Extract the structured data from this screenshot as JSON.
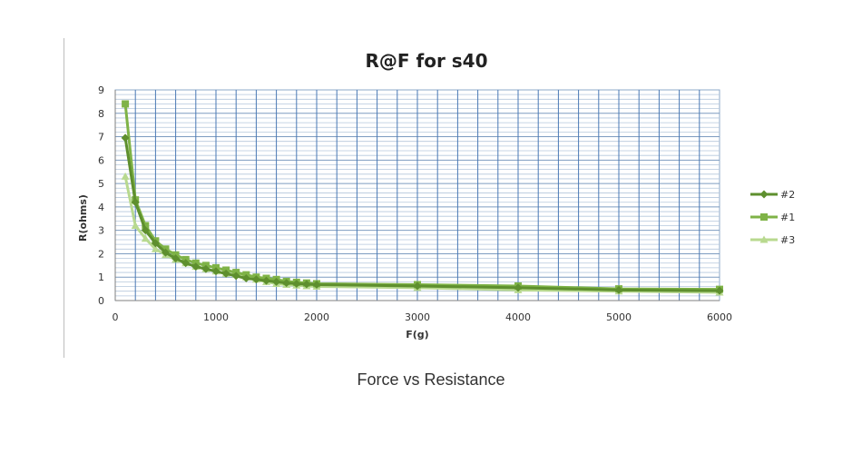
{
  "caption": "Force vs Resistance",
  "chart_data": {
    "type": "line",
    "title": "R@F for s40",
    "xlabel": "F(g)",
    "ylabel": "R(ohms)",
    "xlim": [
      0,
      6000
    ],
    "ylim": [
      0,
      9
    ],
    "x_major_ticks": [
      0,
      1000,
      2000,
      3000,
      4000,
      5000,
      6000
    ],
    "y_major_ticks": [
      0,
      1,
      2,
      3,
      4,
      5,
      6,
      7,
      8,
      9
    ],
    "grid": true,
    "legend_position": "right",
    "series": [
      {
        "name": "#2",
        "marker": "diamond",
        "color": "#5e8f2e",
        "x": [
          100,
          200,
          300,
          400,
          500,
          600,
          700,
          800,
          900,
          1000,
          1100,
          1200,
          1300,
          1400,
          1500,
          1600,
          1700,
          1800,
          1900,
          2000,
          3000,
          4000,
          5000,
          6000
        ],
        "y": [
          6.95,
          4.2,
          3.0,
          2.45,
          2.05,
          1.8,
          1.6,
          1.45,
          1.35,
          1.25,
          1.15,
          1.05,
          0.95,
          0.9,
          0.85,
          0.8,
          0.75,
          0.72,
          0.7,
          0.68,
          0.62,
          0.55,
          0.45,
          0.42
        ]
      },
      {
        "name": "#1",
        "marker": "square",
        "color": "#7fb347",
        "x": [
          100,
          200,
          300,
          400,
          500,
          600,
          700,
          800,
          900,
          1000,
          1100,
          1200,
          1300,
          1400,
          1500,
          1600,
          1700,
          1800,
          1900,
          2000,
          3000,
          4000,
          5000,
          6000
        ],
        "y": [
          8.4,
          4.3,
          3.2,
          2.55,
          2.2,
          1.95,
          1.75,
          1.6,
          1.5,
          1.4,
          1.3,
          1.2,
          1.1,
          1.0,
          0.95,
          0.9,
          0.82,
          0.78,
          0.75,
          0.72,
          0.68,
          0.62,
          0.5,
          0.48
        ]
      },
      {
        "name": "#3",
        "marker": "triangle",
        "color": "#b8d98f",
        "x": [
          100,
          200,
          300,
          400,
          500,
          600,
          700,
          800,
          900,
          1000,
          1100,
          1200,
          1300,
          1400,
          1500,
          1600,
          1700,
          1800,
          1900,
          2000,
          3000,
          4000,
          5000,
          6000
        ],
        "y": [
          5.3,
          3.2,
          2.65,
          2.2,
          1.95,
          1.75,
          1.6,
          1.45,
          1.35,
          1.25,
          1.15,
          1.1,
          1.0,
          0.9,
          0.8,
          0.72,
          0.68,
          0.65,
          0.62,
          0.6,
          0.55,
          0.45,
          0.4,
          0.35
        ]
      }
    ]
  }
}
